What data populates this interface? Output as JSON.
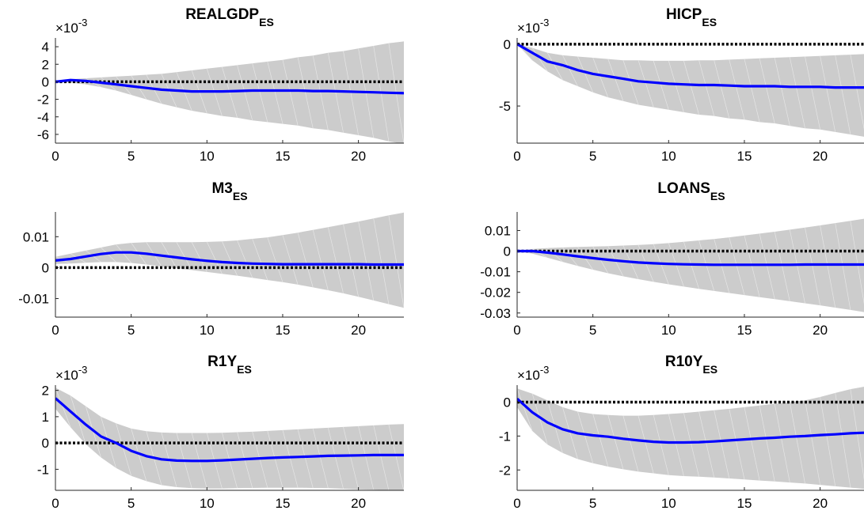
{
  "chart_data": [
    {
      "type": "line",
      "title": "REALGDP",
      "title_subscript": "ES",
      "exponent_label": "×10",
      "exponent_power": "-3",
      "xlim": [
        0,
        23
      ],
      "ylim": [
        -7,
        5
      ],
      "xticks": [
        0,
        5,
        10,
        15,
        20
      ],
      "xtick_labels": [
        "0",
        "5",
        "10",
        "15",
        "20"
      ],
      "yticks": [
        4,
        2,
        0,
        -2,
        -4,
        -6
      ],
      "ytick_labels": [
        "4",
        "2",
        "0",
        "-2",
        "-4",
        "-6"
      ],
      "x": [
        0,
        1,
        2,
        3,
        4,
        5,
        6,
        7,
        8,
        9,
        10,
        11,
        12,
        13,
        14,
        15,
        16,
        17,
        18,
        19,
        20,
        21,
        22,
        23
      ],
      "irf": [
        0,
        0.2,
        0.1,
        -0.1,
        -0.3,
        -0.5,
        -0.7,
        -0.9,
        -1.0,
        -1.1,
        -1.1,
        -1.1,
        -1.05,
        -1.0,
        -1.0,
        -1.0,
        -1.0,
        -1.05,
        -1.05,
        -1.1,
        -1.15,
        -1.2,
        -1.25,
        -1.3
      ],
      "upper": [
        0,
        0.3,
        0.4,
        0.5,
        0.6,
        0.7,
        0.8,
        0.9,
        1.1,
        1.3,
        1.5,
        1.7,
        1.9,
        2.1,
        2.3,
        2.5,
        2.8,
        3.0,
        3.3,
        3.5,
        3.8,
        4.1,
        4.4,
        4.6
      ],
      "lower": [
        0,
        -0.1,
        -0.3,
        -0.6,
        -1.0,
        -1.5,
        -2.0,
        -2.5,
        -2.9,
        -3.3,
        -3.6,
        -3.9,
        -4.1,
        -4.4,
        -4.6,
        -4.8,
        -5.0,
        -5.3,
        -5.5,
        -5.8,
        -6.1,
        -6.4,
        -6.8,
        -7.1
      ],
      "zero_line": 0
    },
    {
      "type": "line",
      "title": "HICP",
      "title_subscript": "ES",
      "exponent_label": "×10",
      "exponent_power": "-3",
      "xlim": [
        0,
        23
      ],
      "ylim": [
        -8,
        0.5
      ],
      "xticks": [
        0,
        5,
        10,
        15,
        20
      ],
      "xtick_labels": [
        "0",
        "5",
        "10",
        "15",
        "20"
      ],
      "yticks": [
        0,
        -5
      ],
      "ytick_labels": [
        "0",
        "-5"
      ],
      "x": [
        0,
        1,
        2,
        3,
        4,
        5,
        6,
        7,
        8,
        9,
        10,
        11,
        12,
        13,
        14,
        15,
        16,
        17,
        18,
        19,
        20,
        21,
        22,
        23
      ],
      "irf": [
        0,
        -0.7,
        -1.4,
        -1.7,
        -2.1,
        -2.4,
        -2.6,
        -2.8,
        -3.0,
        -3.1,
        -3.2,
        -3.25,
        -3.3,
        -3.3,
        -3.35,
        -3.4,
        -3.4,
        -3.4,
        -3.45,
        -3.45,
        -3.45,
        -3.5,
        -3.5,
        -3.5
      ],
      "upper": [
        0,
        -0.3,
        -0.7,
        -0.9,
        -1.0,
        -1.1,
        -1.2,
        -1.3,
        -1.3,
        -1.35,
        -1.35,
        -1.35,
        -1.3,
        -1.3,
        -1.25,
        -1.2,
        -1.15,
        -1.1,
        -1.05,
        -1.0,
        -0.95,
        -0.9,
        -0.85,
        -0.8
      ],
      "lower": [
        0,
        -1.3,
        -2.2,
        -2.9,
        -3.4,
        -3.9,
        -4.3,
        -4.6,
        -4.9,
        -5.1,
        -5.3,
        -5.5,
        -5.7,
        -5.8,
        -6.0,
        -6.1,
        -6.3,
        -6.4,
        -6.6,
        -6.8,
        -6.9,
        -7.1,
        -7.3,
        -7.5
      ],
      "zero_line": 0
    },
    {
      "type": "line",
      "title": "M3",
      "title_subscript": "ES",
      "xlim": [
        0,
        23
      ],
      "ylim": [
        -0.016,
        0.018
      ],
      "xticks": [
        0,
        5,
        10,
        15,
        20
      ],
      "xtick_labels": [
        "0",
        "5",
        "10",
        "15",
        "20"
      ],
      "yticks": [
        0.01,
        0,
        -0.01
      ],
      "ytick_labels": [
        "0.01",
        "0",
        "-0.01"
      ],
      "x": [
        0,
        1,
        2,
        3,
        4,
        5,
        6,
        7,
        8,
        9,
        10,
        11,
        12,
        13,
        14,
        15,
        16,
        17,
        18,
        19,
        20,
        21,
        22,
        23
      ],
      "irf": [
        0.0023,
        0.0028,
        0.0036,
        0.0044,
        0.0049,
        0.0049,
        0.0045,
        0.0039,
        0.0033,
        0.0027,
        0.0022,
        0.0018,
        0.0015,
        0.0013,
        0.0012,
        0.0011,
        0.0011,
        0.0011,
        0.0011,
        0.0011,
        0.0011,
        0.001,
        0.001,
        0.001
      ],
      "upper": [
        0.0035,
        0.0045,
        0.0055,
        0.0065,
        0.0075,
        0.008,
        0.0082,
        0.0082,
        0.0082,
        0.0082,
        0.0083,
        0.0085,
        0.0088,
        0.0093,
        0.0098,
        0.0105,
        0.0113,
        0.0122,
        0.0131,
        0.014,
        0.0149,
        0.0159,
        0.0169,
        0.0178
      ],
      "lower": [
        0.0012,
        0.0013,
        0.0016,
        0.0018,
        0.0018,
        0.0015,
        0.001,
        0.0004,
        -0.0002,
        -0.0008,
        -0.0014,
        -0.002,
        -0.0026,
        -0.0033,
        -0.004,
        -0.0047,
        -0.0055,
        -0.0064,
        -0.0073,
        -0.0083,
        -0.0094,
        -0.0106,
        -0.0118,
        -0.013
      ],
      "zero_line": 0
    },
    {
      "type": "line",
      "title": "LOANS",
      "title_subscript": "ES",
      "xlim": [
        0,
        23
      ],
      "ylim": [
        -0.032,
        0.019
      ],
      "xticks": [
        0,
        5,
        10,
        15,
        20
      ],
      "xtick_labels": [
        "0",
        "5",
        "10",
        "15",
        "20"
      ],
      "yticks": [
        0.01,
        0,
        -0.01,
        -0.02,
        -0.03
      ],
      "ytick_labels": [
        "0.01",
        "0",
        "-0.01",
        "-0.02",
        "-0.03"
      ],
      "x": [
        0,
        1,
        2,
        3,
        4,
        5,
        6,
        7,
        8,
        9,
        10,
        11,
        12,
        13,
        14,
        15,
        16,
        17,
        18,
        19,
        20,
        21,
        22,
        23
      ],
      "irf": [
        0,
        0,
        -0.0007,
        -0.0016,
        -0.0025,
        -0.0034,
        -0.0042,
        -0.0049,
        -0.0055,
        -0.0059,
        -0.0062,
        -0.0064,
        -0.0065,
        -0.0066,
        -0.0066,
        -0.0066,
        -0.0066,
        -0.0066,
        -0.0066,
        -0.0065,
        -0.0065,
        -0.0065,
        -0.0065,
        -0.0065
      ],
      "upper": [
        0,
        0.001,
        0.0015,
        0.0018,
        0.002,
        0.0022,
        0.0024,
        0.0027,
        0.003,
        0.0034,
        0.0039,
        0.0045,
        0.0052,
        0.0059,
        0.0067,
        0.0076,
        0.0085,
        0.0094,
        0.0104,
        0.0114,
        0.0125,
        0.0136,
        0.0147,
        0.0158
      ],
      "lower": [
        0,
        -0.0012,
        -0.0032,
        -0.0052,
        -0.0072,
        -0.009,
        -0.0107,
        -0.0122,
        -0.0136,
        -0.0149,
        -0.0161,
        -0.0172,
        -0.0183,
        -0.0193,
        -0.0203,
        -0.0213,
        -0.0223,
        -0.0233,
        -0.0243,
        -0.0253,
        -0.0263,
        -0.0274,
        -0.0285,
        -0.0297
      ],
      "zero_line": 0
    },
    {
      "type": "line",
      "title": "R1Y",
      "title_subscript": "ES",
      "exponent_label": "×10",
      "exponent_power": "-3",
      "xlim": [
        0,
        23
      ],
      "ylim": [
        -1.8,
        2.2
      ],
      "xticks": [
        0,
        5,
        10,
        15,
        20
      ],
      "xtick_labels": [
        "0",
        "5",
        "10",
        "15",
        "20"
      ],
      "yticks": [
        2,
        1,
        0,
        -1
      ],
      "ytick_labels": [
        "2",
        "1",
        "0",
        "-1"
      ],
      "x": [
        0,
        1,
        2,
        3,
        4,
        5,
        6,
        7,
        8,
        9,
        10,
        11,
        12,
        13,
        14,
        15,
        16,
        17,
        18,
        19,
        20,
        21,
        22,
        23
      ],
      "irf": [
        1.7,
        1.2,
        0.7,
        0.25,
        0.0,
        -0.3,
        -0.5,
        -0.62,
        -0.67,
        -0.68,
        -0.68,
        -0.66,
        -0.63,
        -0.6,
        -0.57,
        -0.55,
        -0.53,
        -0.51,
        -0.49,
        -0.48,
        -0.47,
        -0.46,
        -0.46,
        -0.46
      ],
      "upper": [
        2.1,
        1.8,
        1.4,
        1.0,
        0.75,
        0.55,
        0.45,
        0.4,
        0.38,
        0.38,
        0.38,
        0.39,
        0.41,
        0.43,
        0.46,
        0.49,
        0.52,
        0.55,
        0.58,
        0.61,
        0.64,
        0.67,
        0.7,
        0.72
      ],
      "lower": [
        1.3,
        0.6,
        -0.05,
        -0.55,
        -0.95,
        -1.25,
        -1.45,
        -1.6,
        -1.68,
        -1.72,
        -1.73,
        -1.73,
        -1.72,
        -1.71,
        -1.7,
        -1.7,
        -1.7,
        -1.71,
        -1.72,
        -1.74,
        -1.76,
        -1.78,
        -1.8,
        -1.82
      ],
      "zero_line": 0
    },
    {
      "type": "line",
      "title": "R10Y",
      "title_subscript": "ES",
      "exponent_label": "×10",
      "exponent_power": "-3",
      "xlim": [
        0,
        23
      ],
      "ylim": [
        -2.6,
        0.5
      ],
      "xticks": [
        0,
        5,
        10,
        15,
        20
      ],
      "xtick_labels": [
        "0",
        "5",
        "10",
        "15",
        "20"
      ],
      "yticks": [
        0,
        -1,
        -2
      ],
      "ytick_labels": [
        "0",
        "-1",
        "-2"
      ],
      "x": [
        0,
        1,
        2,
        3,
        4,
        5,
        6,
        7,
        8,
        9,
        10,
        11,
        12,
        13,
        14,
        15,
        16,
        17,
        18,
        19,
        20,
        21,
        22,
        23
      ],
      "irf": [
        0.1,
        -0.3,
        -0.6,
        -0.8,
        -0.92,
        -0.98,
        -1.02,
        -1.08,
        -1.13,
        -1.17,
        -1.19,
        -1.19,
        -1.18,
        -1.16,
        -1.13,
        -1.1,
        -1.07,
        -1.05,
        -1.02,
        -1.0,
        -0.97,
        -0.95,
        -0.92,
        -0.9
      ],
      "upper": [
        0.4,
        0.25,
        0.05,
        -0.15,
        -0.28,
        -0.35,
        -0.38,
        -0.4,
        -0.4,
        -0.38,
        -0.35,
        -0.32,
        -0.28,
        -0.24,
        -0.2,
        -0.15,
        -0.1,
        -0.05,
        0.0,
        0.05,
        0.15,
        0.27,
        0.38,
        0.46
      ],
      "lower": [
        -0.15,
        -0.85,
        -1.25,
        -1.5,
        -1.68,
        -1.8,
        -1.9,
        -1.98,
        -2.05,
        -2.1,
        -2.15,
        -2.18,
        -2.2,
        -2.22,
        -2.25,
        -2.28,
        -2.31,
        -2.34,
        -2.37,
        -2.4,
        -2.44,
        -2.48,
        -2.52,
        -2.56
      ],
      "zero_line": 0
    }
  ],
  "colors": {
    "irf_line": "#0000ff",
    "band_fill": "#cccccc",
    "zero_line": "#000000",
    "axis": "#262626",
    "text": "#000000"
  }
}
